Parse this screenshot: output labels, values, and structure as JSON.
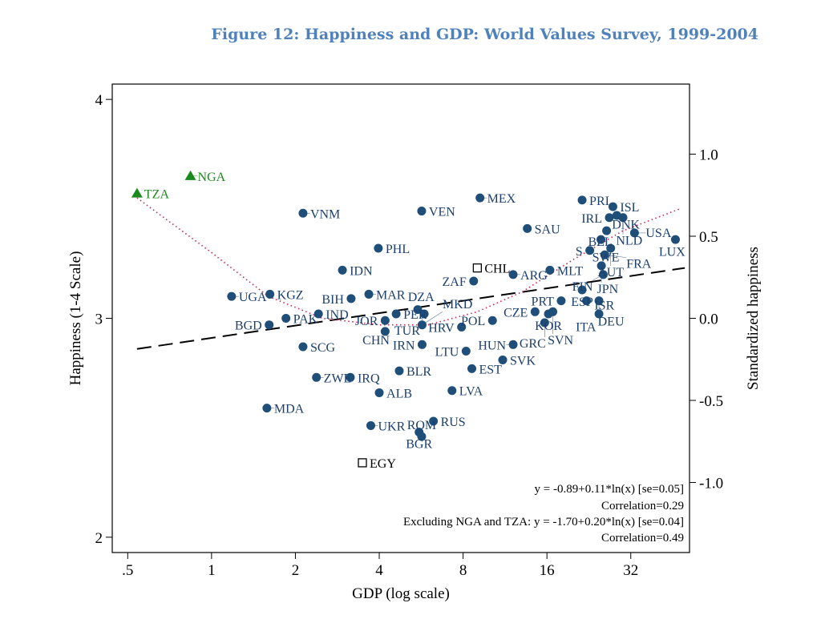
{
  "title": "Figure 12: Happiness and GDP: World Values Survey, 1999-2004",
  "chart_data": {
    "type": "scatter",
    "title": "Figure 12: Happiness and GDP: World Values Survey, 1999-2004",
    "xlabel": "GDP (log scale)",
    "ylabel": "Happiness (1-4 Scale)",
    "y2label": "Standardized happiness",
    "xscale": "log",
    "xlim": [
      0.44,
      52
    ],
    "ylim": [
      1.93,
      4.07
    ],
    "xticks": [
      {
        "v": 0.5,
        "label": ".5"
      },
      {
        "v": 1,
        "label": "1"
      },
      {
        "v": 2,
        "label": "2"
      },
      {
        "v": 4,
        "label": "4"
      },
      {
        "v": 8,
        "label": "8"
      },
      {
        "v": 16,
        "label": "16"
      },
      {
        "v": 32,
        "label": "32"
      }
    ],
    "yticks": [
      {
        "v": 2,
        "label": "2"
      },
      {
        "v": 3,
        "label": "3"
      },
      {
        "v": 4,
        "label": "4"
      }
    ],
    "y2ticks": [
      {
        "v": 1.0,
        "label": "1.0"
      },
      {
        "v": 0.5,
        "label": "0.5"
      },
      {
        "v": 0.0,
        "label": "0.0"
      },
      {
        "v": -0.5,
        "label": "-0.5"
      },
      {
        "v": -1.0,
        "label": "-1.0"
      }
    ],
    "y2_mapping": {
      "zero_at": 3.0,
      "unit": 0.75
    },
    "colors": {
      "circle": "#1f4e79",
      "triangle": "#1a8a1a",
      "label": "#1b3f6e",
      "lowess": "#d6204e",
      "regression": "#000000"
    },
    "points": [
      {
        "c": "TZA",
        "x": 0.54,
        "y": 3.57,
        "m": "triangle"
      },
      {
        "c": "NGA",
        "x": 0.84,
        "y": 3.65,
        "m": "triangle"
      },
      {
        "c": "VNM",
        "x": 2.13,
        "y": 3.48,
        "m": "circle"
      },
      {
        "c": "PHL",
        "x": 3.97,
        "y": 3.32,
        "m": "circle"
      },
      {
        "c": "IDN",
        "x": 2.95,
        "y": 3.22,
        "m": "circle"
      },
      {
        "c": "MAR",
        "x": 3.67,
        "y": 3.11,
        "m": "circle"
      },
      {
        "c": "BIH",
        "x": 3.17,
        "y": 3.09,
        "m": "circle"
      },
      {
        "c": "UGA",
        "x": 1.18,
        "y": 3.1,
        "m": "circle"
      },
      {
        "c": "KGZ",
        "x": 1.62,
        "y": 3.11,
        "m": "circle"
      },
      {
        "c": "PAK",
        "x": 1.85,
        "y": 3.0,
        "m": "circle"
      },
      {
        "c": "BGD",
        "x": 1.61,
        "y": 2.97,
        "m": "circle"
      },
      {
        "c": "IND",
        "x": 2.42,
        "y": 3.02,
        "m": "circle"
      },
      {
        "c": "SCG",
        "x": 2.13,
        "y": 2.87,
        "m": "circle"
      },
      {
        "c": "ZWE",
        "x": 2.38,
        "y": 2.73,
        "m": "circle"
      },
      {
        "c": "IRQ",
        "x": 3.15,
        "y": 2.73,
        "m": "circle"
      },
      {
        "c": "MDA",
        "x": 1.58,
        "y": 2.59,
        "m": "circle"
      },
      {
        "c": "ALB",
        "x": 4.0,
        "y": 2.66,
        "m": "circle"
      },
      {
        "c": "BLR",
        "x": 4.72,
        "y": 2.76,
        "m": "circle"
      },
      {
        "c": "UKR",
        "x": 3.73,
        "y": 2.51,
        "m": "circle"
      },
      {
        "c": "RUS",
        "x": 6.26,
        "y": 2.53,
        "m": "circle"
      },
      {
        "c": "BGR",
        "x": 5.56,
        "y": 2.48,
        "m": "circle"
      },
      {
        "c": "ROM",
        "x": 5.68,
        "y": 2.46,
        "m": "circle"
      },
      {
        "c": "EGY",
        "x": 3.48,
        "y": 2.34,
        "m": "square"
      },
      {
        "c": "CHL",
        "x": 9.0,
        "y": 3.23,
        "m": "square"
      },
      {
        "c": "ZAF",
        "x": 8.73,
        "y": 3.17,
        "m": "circle"
      },
      {
        "c": "ARG",
        "x": 12.1,
        "y": 3.2,
        "m": "circle"
      },
      {
        "c": "MLT",
        "x": 16.4,
        "y": 3.22,
        "m": "circle"
      },
      {
        "c": "MEX",
        "x": 9.2,
        "y": 3.55,
        "m": "circle"
      },
      {
        "c": "VEN",
        "x": 5.68,
        "y": 3.49,
        "m": "circle"
      },
      {
        "c": "SAU",
        "x": 13.6,
        "y": 3.41,
        "m": "circle"
      },
      {
        "c": "PRI",
        "x": 21.4,
        "y": 3.54,
        "m": "circle"
      },
      {
        "c": "ISL",
        "x": 27.6,
        "y": 3.51,
        "m": "circle"
      },
      {
        "c": "IRL",
        "x": 26.8,
        "y": 3.46,
        "m": "circle"
      },
      {
        "c": "DNK",
        "x": 28.5,
        "y": 3.47,
        "m": "circle"
      },
      {
        "c": "NLD",
        "x": 30.0,
        "y": 3.46,
        "m": "circle"
      },
      {
        "c": "BEL",
        "x": 26.2,
        "y": 3.4,
        "m": "circle"
      },
      {
        "c": "USA",
        "x": 33.0,
        "y": 3.39,
        "m": "circle"
      },
      {
        "c": "LUX",
        "x": 46.3,
        "y": 3.36,
        "m": "circle"
      },
      {
        "c": "SWE",
        "x": 25.0,
        "y": 3.36,
        "m": "circle"
      },
      {
        "c": "AUT",
        "x": 27.1,
        "y": 3.32,
        "m": "circle"
      },
      {
        "c": "S",
        "x": 22.8,
        "y": 3.31,
        "m": "circle"
      },
      {
        "c": "FRA",
        "x": 25.8,
        "y": 3.29,
        "m": "circle"
      },
      {
        "c": "JPN",
        "x": 25.1,
        "y": 3.24,
        "m": "circle"
      },
      {
        "c": "FIN",
        "x": 25.5,
        "y": 3.2,
        "m": "circle"
      },
      {
        "c": "ESP",
        "x": 21.4,
        "y": 3.13,
        "m": "circle"
      },
      {
        "c": "PRT",
        "x": 18.0,
        "y": 3.08,
        "m": "circle"
      },
      {
        "c": "ISR",
        "x": 22.2,
        "y": 3.08,
        "m": "circle"
      },
      {
        "c": "DEU",
        "x": 24.6,
        "y": 3.08,
        "m": "circle"
      },
      {
        "c": "ITA",
        "x": 24.6,
        "y": 3.02,
        "m": "circle"
      },
      {
        "c": "CZE",
        "x": 14.5,
        "y": 3.03,
        "m": "circle"
      },
      {
        "c": "KOR",
        "x": 16.2,
        "y": 3.02,
        "m": "circle"
      },
      {
        "c": "SVN",
        "x": 16.8,
        "y": 3.03,
        "m": "circle"
      },
      {
        "c": "GRC",
        "x": 15.7,
        "y": 2.98,
        "m": "circle"
      },
      {
        "c": "POL",
        "x": 10.2,
        "y": 2.99,
        "m": "circle"
      },
      {
        "c": "HRV",
        "x": 7.9,
        "y": 2.96,
        "m": "circle"
      },
      {
        "c": "HUN",
        "x": 12.1,
        "y": 2.88,
        "m": "circle"
      },
      {
        "c": "SVK",
        "x": 11.1,
        "y": 2.81,
        "m": "circle"
      },
      {
        "c": "LTU",
        "x": 8.2,
        "y": 2.85,
        "m": "circle"
      },
      {
        "c": "EST",
        "x": 8.6,
        "y": 2.77,
        "m": "circle"
      },
      {
        "c": "LVA",
        "x": 7.3,
        "y": 2.67,
        "m": "circle"
      },
      {
        "c": "IRN",
        "x": 5.7,
        "y": 2.88,
        "m": "circle"
      },
      {
        "c": "PER",
        "x": 4.6,
        "y": 3.02,
        "m": "circle"
      },
      {
        "c": "DZA",
        "x": 5.5,
        "y": 3.04,
        "m": "circle"
      },
      {
        "c": "JOR",
        "x": 4.2,
        "y": 2.99,
        "m": "circle"
      },
      {
        "c": "TUR",
        "x": 5.8,
        "y": 3.02,
        "m": "circle"
      },
      {
        "c": "MKD",
        "x": 5.7,
        "y": 2.97,
        "m": "circle"
      },
      {
        "c": "CHN",
        "x": 4.2,
        "y": 2.94,
        "m": "circle"
      }
    ],
    "regression_line": [
      {
        "x": 0.54,
        "y": 2.86
      },
      {
        "x": 50,
        "y": 3.23
      }
    ],
    "lowess_curve": [
      {
        "x": 0.54,
        "y": 3.55
      },
      {
        "x": 1,
        "y": 3.3
      },
      {
        "x": 1.6,
        "y": 3.1
      },
      {
        "x": 2.5,
        "y": 3.0
      },
      {
        "x": 4,
        "y": 2.97
      },
      {
        "x": 6,
        "y": 2.97
      },
      {
        "x": 9,
        "y": 3.03
      },
      {
        "x": 13,
        "y": 3.12
      },
      {
        "x": 20,
        "y": 3.27
      },
      {
        "x": 30,
        "y": 3.4
      },
      {
        "x": 48,
        "y": 3.5
      }
    ],
    "annotations": [
      "y = -0.89+0.11*ln(x) [se=0.05]",
      "Correlation=0.29",
      "Excluding NGA and TZA: y = -1.70+0.20*ln(x) [se=0.04]",
      "Correlation=0.49"
    ]
  }
}
